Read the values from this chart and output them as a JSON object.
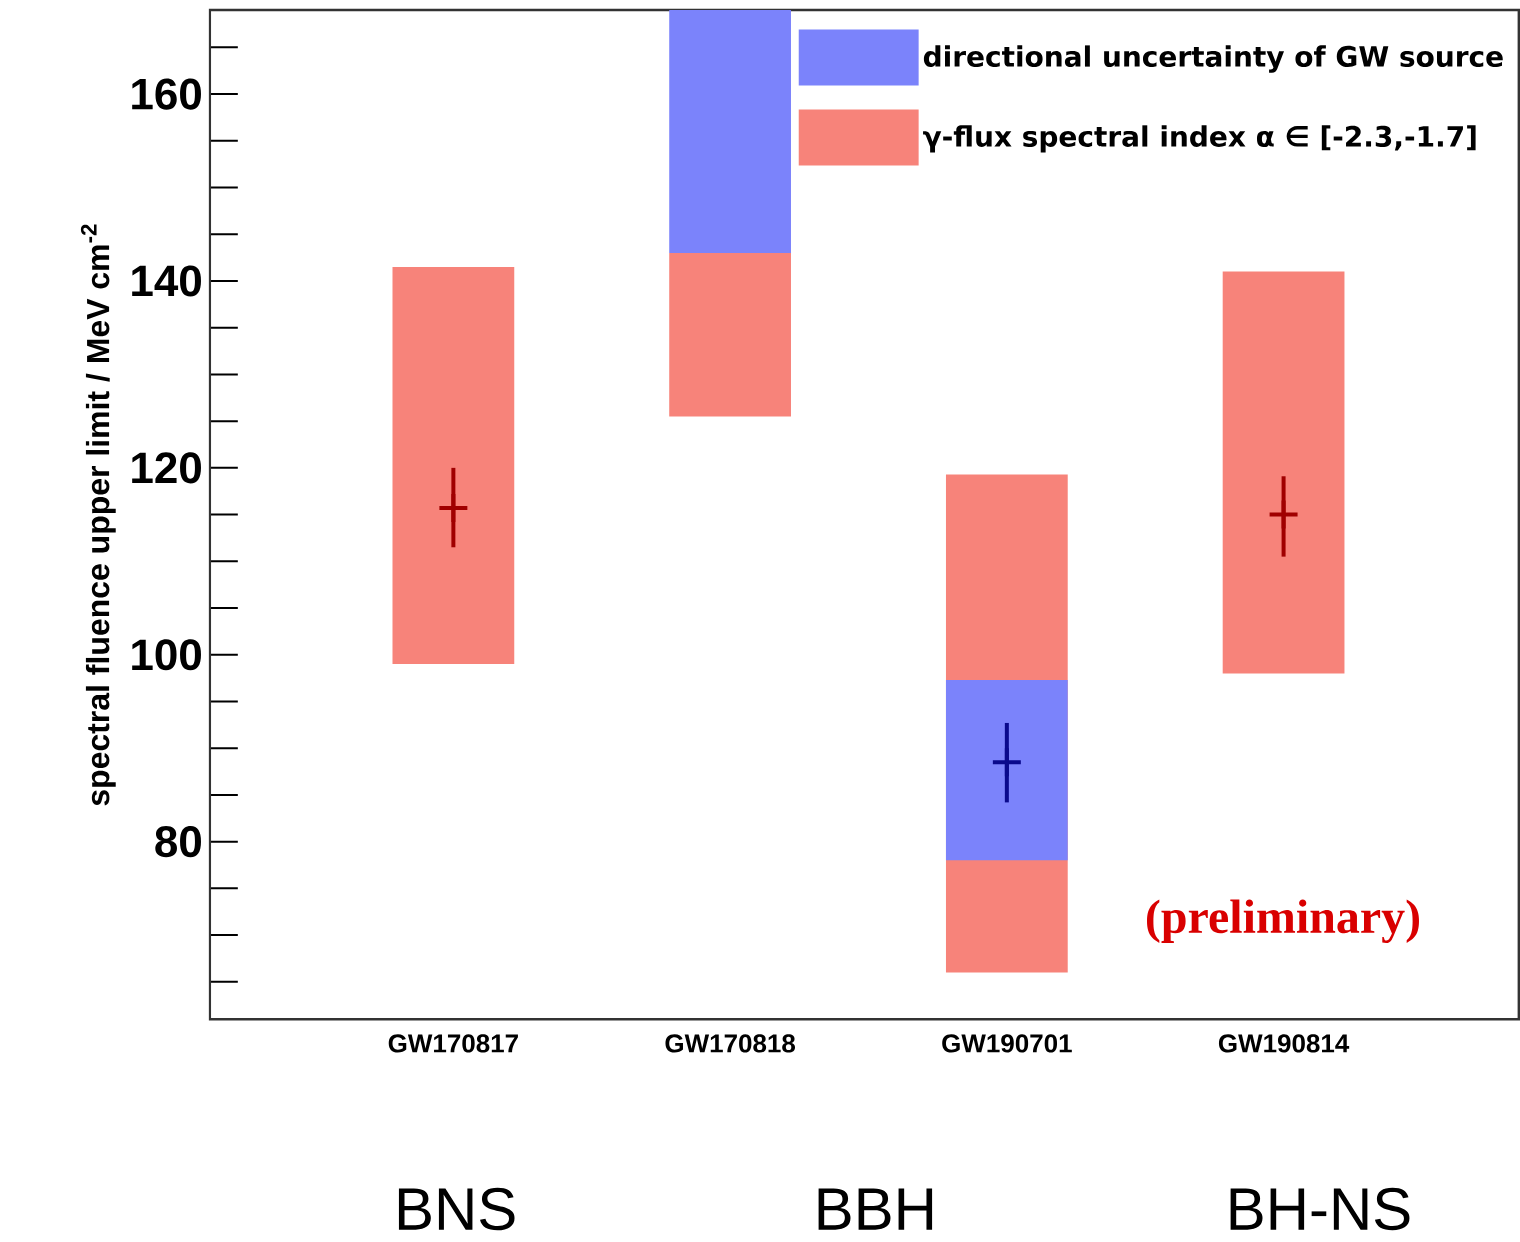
{
  "chart_data": {
    "type": "bar",
    "ylabel": "spectral fluence upper limit / MeV cm$^{-2}$",
    "categories": [
      "GW170817",
      "GW170818",
      "GW190701",
      "GW190814"
    ],
    "series": [
      {
        "name": "directional uncertainty of GW source",
        "color": "#7b83fb",
        "base": [
          null,
          143,
          78,
          null
        ],
        "values": [
          null,
          26,
          19.3,
          null
        ]
      },
      {
        "name": "γ-flux spectral index α ∈ [-2.3,-1.7]",
        "color": "#f7837a",
        "base": [
          99,
          125.5,
          66,
          98
        ],
        "values": [
          42.5,
          17.5,
          53.3,
          43
        ]
      },
      {
        "type": "scatter",
        "marker": "cross",
        "x": [
          "GW170817",
          "GW190701",
          "GW190814"
        ],
        "values": [
          115.7,
          88.5,
          115
        ],
        "errors": [
          [
            111.5,
            120
          ],
          [
            84.2,
            92.7
          ],
          [
            110.5,
            119.1
          ]
        ],
        "colors": [
          "#a00000",
          "#0a0a8c",
          "#a00000"
        ]
      }
    ],
    "ylim": [
      61,
      169
    ],
    "yticks": [
      {
        "value": 65,
        "label": null
      },
      {
        "value": 70,
        "label": null
      },
      {
        "value": 75,
        "label": null
      },
      80,
      {
        "value": 85,
        "label": null
      },
      {
        "value": 90,
        "label": null
      },
      {
        "value": 95,
        "label": null
      },
      100,
      {
        "value": 105,
        "label": null
      },
      {
        "value": 110,
        "label": null
      },
      {
        "value": 115,
        "label": null
      },
      120,
      {
        "value": 125,
        "label": null
      },
      {
        "value": 130,
        "label": null
      },
      {
        "value": 135,
        "label": null
      },
      140,
      {
        "value": 145,
        "label": null
      },
      {
        "value": 150,
        "label": null
      },
      {
        "value": 155,
        "label": null
      },
      160,
      {
        "value": 165,
        "label": null
      }
    ],
    "legend": "top right",
    "annotations": [
      "(preliminary)",
      "BNS",
      "BBH",
      "BH-NS"
    ]
  }
}
